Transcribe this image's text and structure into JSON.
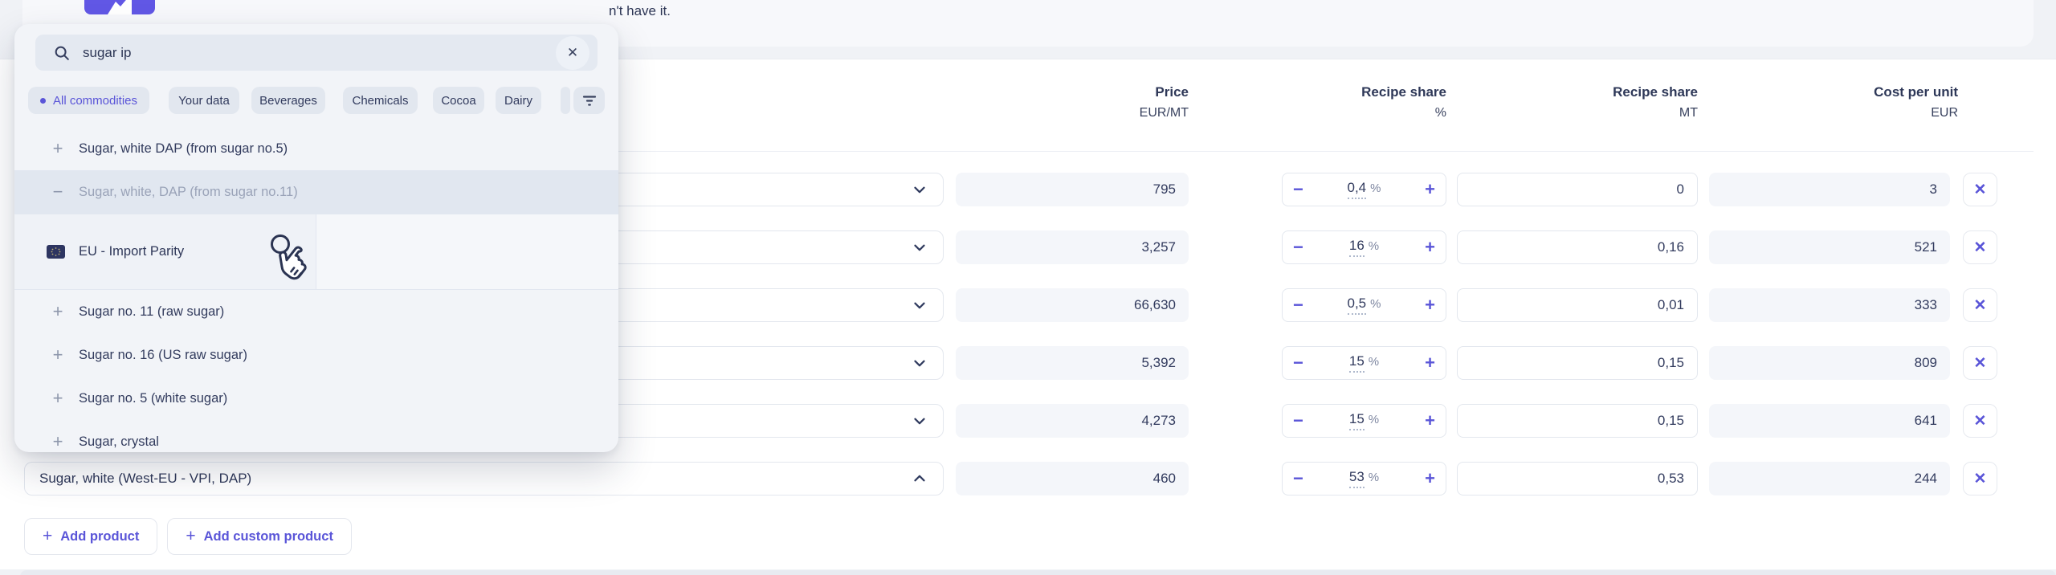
{
  "banner": {
    "visible_text": "n't have it."
  },
  "icons": {
    "plus": "+",
    "minus": "−",
    "delete": "✕",
    "clear": "✕"
  },
  "colors": {
    "accent": "#5a55d8",
    "navy": "#303a5c",
    "muted": "#9aa3b8",
    "highlight": "#e1e7f0"
  },
  "search_panel": {
    "query": "sugar ip",
    "filters": [
      {
        "label": "All commodities",
        "active": true
      },
      {
        "label": "Your data",
        "active": false
      },
      {
        "label": "Beverages",
        "active": false
      },
      {
        "label": "Chemicals",
        "active": false
      },
      {
        "label": "Cocoa",
        "active": false
      },
      {
        "label": "Dairy",
        "active": false
      }
    ],
    "results": [
      {
        "icon": "plus",
        "label": "Sugar, white DAP (from sugar no.5)"
      },
      {
        "icon": "minus",
        "label": "Sugar, white, DAP (from sugar no.11)",
        "muted": true,
        "highlighted": true,
        "expanded": true
      },
      {
        "icon": "plus",
        "label": "Sugar no. 11 (raw sugar)"
      },
      {
        "icon": "plus",
        "label": "Sugar no. 16 (US raw sugar)"
      },
      {
        "icon": "plus",
        "label": "Sugar no. 5 (white sugar)"
      },
      {
        "icon": "plus",
        "label": "Sugar, crystal",
        "clipped": true
      }
    ],
    "source_option": {
      "label": "EU - Import Parity",
      "selected": true
    }
  },
  "table": {
    "columns": [
      {
        "title": "Price",
        "unit": "EUR/MT"
      },
      {
        "title": "Recipe share",
        "unit": "%"
      },
      {
        "title": "Recipe share",
        "unit": "MT"
      },
      {
        "title": "Cost per unit",
        "unit": "EUR"
      }
    ],
    "percent_suffix": "%",
    "rows": [
      {
        "product": "",
        "price": "795",
        "share": "0,4",
        "mt": "0",
        "cost": "3",
        "expanded": false
      },
      {
        "product": "",
        "price": "3,257",
        "share": "16",
        "mt": "0,16",
        "cost": "521",
        "expanded": false
      },
      {
        "product": "",
        "price": "66,630",
        "share": "0,5",
        "mt": "0,01",
        "cost": "333",
        "expanded": false
      },
      {
        "product": "",
        "price": "5,392",
        "share": "15",
        "mt": "0,15",
        "cost": "809",
        "expanded": false
      },
      {
        "product": "",
        "price": "4,273",
        "share": "15",
        "mt": "0,15",
        "cost": "641",
        "expanded": false
      },
      {
        "product": "Sugar, white (West-EU - VPI, DAP)",
        "price": "460",
        "share": "53",
        "mt": "0,53",
        "cost": "244",
        "expanded": true
      }
    ]
  },
  "actions": {
    "add_product": "Add product",
    "add_custom_product": "Add custom product"
  }
}
